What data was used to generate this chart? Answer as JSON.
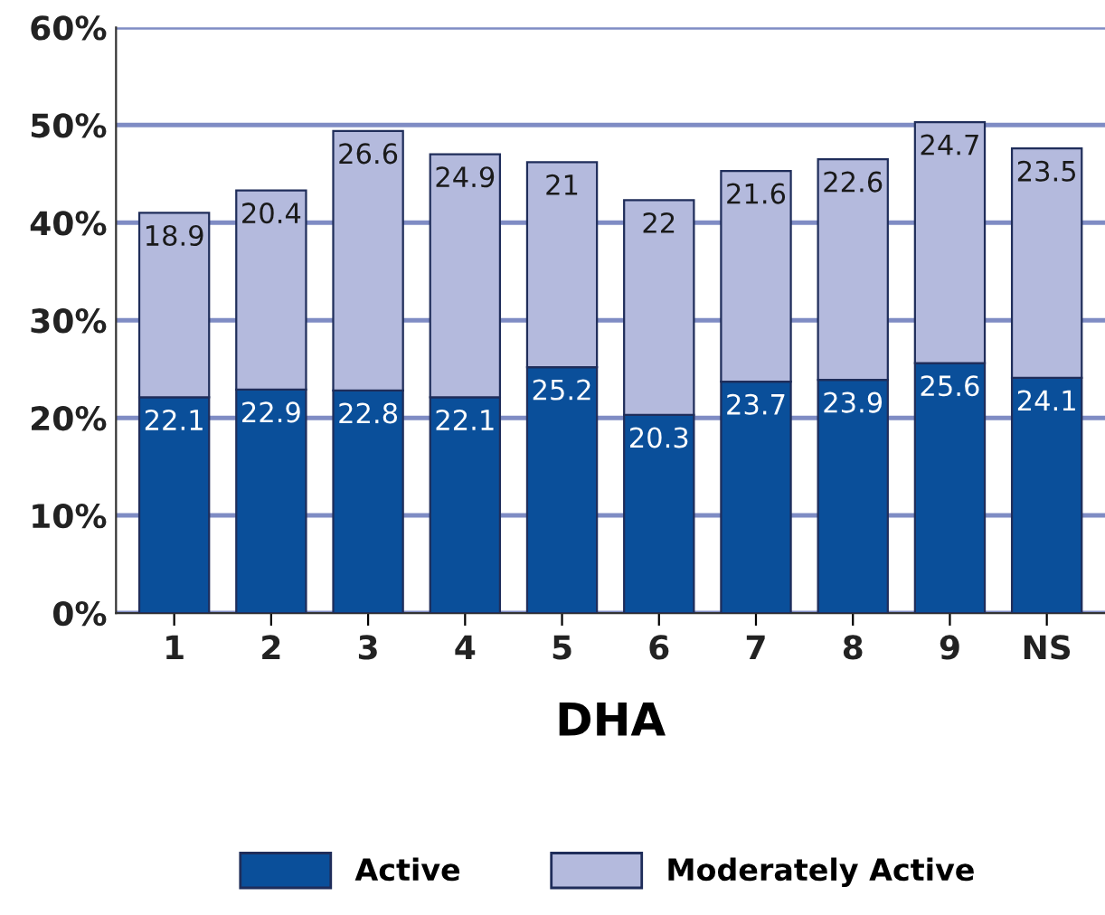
{
  "chart_data": {
    "type": "bar",
    "stacked": true,
    "xlabel": "DHA",
    "categories": [
      "1",
      "2",
      "3",
      "4",
      "5",
      "6",
      "7",
      "8",
      "9",
      "NS"
    ],
    "series": [
      {
        "name": "Active",
        "color": "#0a4f9a",
        "values": [
          22.1,
          22.9,
          22.8,
          22.1,
          25.2,
          20.3,
          23.7,
          23.9,
          25.6,
          24.1
        ]
      },
      {
        "name": "Moderately Active",
        "color": "#b4badd",
        "values": [
          18.9,
          20.4,
          26.6,
          24.9,
          21,
          22,
          21.6,
          22.6,
          24.7,
          23.5
        ]
      }
    ],
    "ylim": [
      0,
      60
    ],
    "yticks": [
      {
        "value": 0,
        "label": "0%"
      },
      {
        "value": 10,
        "label": "10%"
      },
      {
        "value": 20,
        "label": "20%"
      },
      {
        "value": 30,
        "label": "30%"
      },
      {
        "value": 40,
        "label": "40%"
      },
      {
        "value": 50,
        "label": "50%"
      },
      {
        "value": 60,
        "label": "60%"
      }
    ],
    "grid": "y",
    "legend": "bottom",
    "data_labels": true
  }
}
